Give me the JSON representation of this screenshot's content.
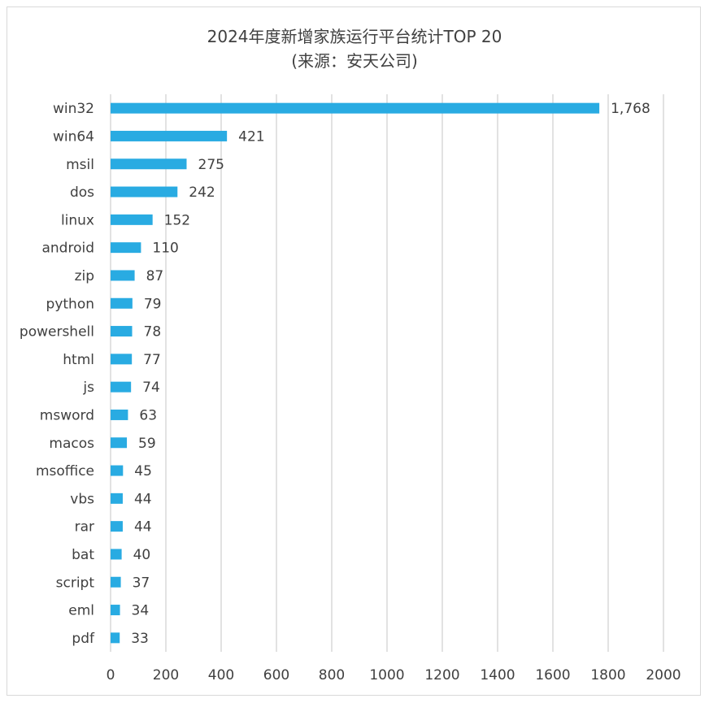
{
  "chart_data": {
    "type": "bar",
    "orientation": "horizontal",
    "title": "2024年度新增家族运行平台统计TOP 20",
    "subtitle": "(来源：安天公司)",
    "categories": [
      "win32",
      "win64",
      "msil",
      "dos",
      "linux",
      "android",
      "zip",
      "python",
      "powershell",
      "html",
      "js",
      "msword",
      "macos",
      "msoffice",
      "vbs",
      "rar",
      "bat",
      "script",
      "eml",
      "pdf"
    ],
    "values": [
      1768,
      421,
      275,
      242,
      152,
      110,
      87,
      79,
      78,
      77,
      74,
      63,
      59,
      45,
      44,
      44,
      40,
      37,
      34,
      33
    ],
    "value_labels": [
      "1,768",
      "421",
      "275",
      "242",
      "152",
      "110",
      "87",
      "79",
      "78",
      "77",
      "74",
      "63",
      "59",
      "45",
      "44",
      "44",
      "40",
      "37",
      "34",
      "33"
    ],
    "xlim": [
      0,
      2000
    ],
    "xticks": [
      "0",
      "200",
      "400",
      "600",
      "800",
      "1000",
      "1200",
      "1400",
      "1600",
      "1800",
      "2000"
    ],
    "xlabel": "",
    "ylabel": "",
    "grid": "vertical",
    "legend": "none",
    "bar_color": "#29abe2",
    "grid_color": "#d9d9d9",
    "text_color": "#404040"
  }
}
